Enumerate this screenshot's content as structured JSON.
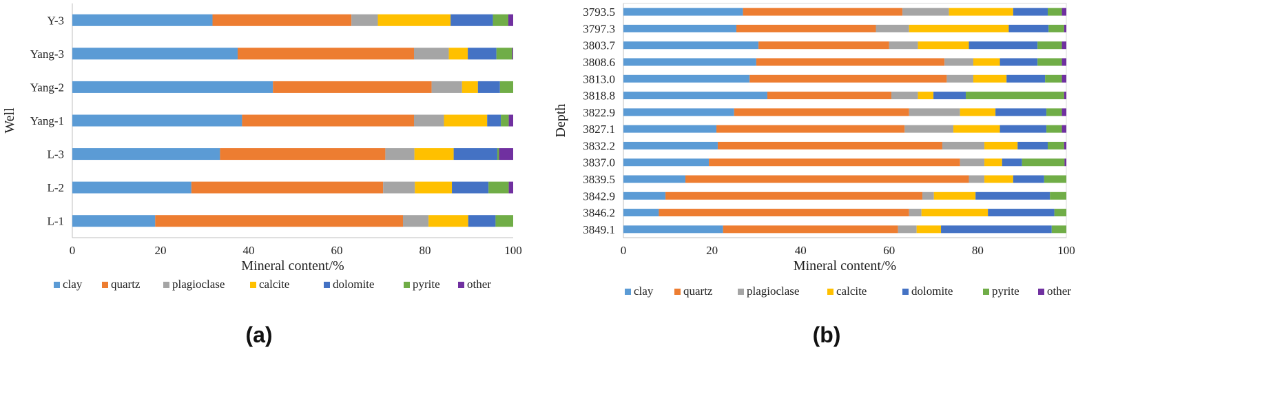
{
  "colors": {
    "clay": "#5b9bd5",
    "quartz": "#ed7d31",
    "plagioclase": "#a5a5a5",
    "calcite": "#ffc000",
    "dolomite": "#4472c4",
    "pyrite": "#70ad47",
    "other": "#7030a0"
  },
  "chart_data": [
    {
      "type": "bar",
      "orientation": "horizontal",
      "stacked": true,
      "panel_label": "(a)",
      "xlabel": "Mineral content/%",
      "ylabel": "Well",
      "xlim": [
        0,
        100
      ],
      "xticks": [
        "0",
        "20",
        "40",
        "60",
        "80",
        "100"
      ],
      "categories": [
        "Y-3",
        "Yang-3",
        "Yang-2",
        "Yang-1",
        "L-3",
        "L-2",
        "L-1"
      ],
      "series": [
        {
          "name": "clay",
          "values": [
            31.8,
            37.5,
            45.5,
            38.5,
            33.5,
            27.0,
            18.8
          ]
        },
        {
          "name": "quartz",
          "values": [
            31.5,
            40.0,
            36.0,
            39.0,
            37.5,
            43.5,
            56.2
          ]
        },
        {
          "name": "plagioclase",
          "values": [
            6.0,
            7.9,
            6.9,
            6.8,
            6.6,
            7.2,
            5.8
          ]
        },
        {
          "name": "calcite",
          "values": [
            16.5,
            4.3,
            3.6,
            9.8,
            8.9,
            8.4,
            9.0
          ]
        },
        {
          "name": "dolomite",
          "values": [
            9.6,
            6.5,
            5.0,
            3.1,
            9.9,
            8.3,
            6.2
          ]
        },
        {
          "name": "pyrite",
          "values": [
            3.5,
            3.6,
            3.0,
            1.8,
            0.4,
            4.6,
            4.0
          ]
        },
        {
          "name": "other",
          "values": [
            1.1,
            0.2,
            0.0,
            1.0,
            3.2,
            1.0,
            0.0
          ]
        }
      ],
      "legend": [
        "clay",
        "quartz",
        "plagioclase",
        "calcite",
        "dolomite",
        "pyrite",
        "other"
      ]
    },
    {
      "type": "bar",
      "orientation": "horizontal",
      "stacked": true,
      "panel_label": "(b)",
      "xlabel": "Mineral content/%",
      "ylabel": "Depth",
      "xlim": [
        0,
        100
      ],
      "xticks": [
        "0",
        "20",
        "40",
        "60",
        "80",
        "100"
      ],
      "categories": [
        "3793.5",
        "3797.3",
        "3803.7",
        "3808.6",
        "3813.0",
        "3818.8",
        "3822.9",
        "3827.1",
        "3832.2",
        "3837.0",
        "3839.5",
        "3842.9",
        "3846.2",
        "3849.1"
      ],
      "series": [
        {
          "name": "clay",
          "values": [
            27.0,
            25.5,
            30.5,
            30.0,
            28.5,
            32.5,
            25.0,
            21.0,
            21.3,
            19.3,
            14.0,
            9.5,
            8.0,
            22.5
          ]
        },
        {
          "name": "quartz",
          "values": [
            36.0,
            31.5,
            29.5,
            42.5,
            44.5,
            28.0,
            39.5,
            42.5,
            50.7,
            56.7,
            64.0,
            58.0,
            56.5,
            39.5
          ]
        },
        {
          "name": "plagioclase",
          "values": [
            10.5,
            7.5,
            6.5,
            6.5,
            6.0,
            6.0,
            11.5,
            11.0,
            9.5,
            5.5,
            3.5,
            2.6,
            2.8,
            4.2
          ]
        },
        {
          "name": "calcite",
          "values": [
            14.5,
            22.5,
            11.5,
            6.0,
            7.5,
            3.5,
            8.0,
            10.5,
            7.5,
            4.0,
            6.5,
            9.4,
            15.0,
            5.5
          ]
        },
        {
          "name": "dolomite",
          "values": [
            7.8,
            9.0,
            15.5,
            8.5,
            8.7,
            7.3,
            11.5,
            10.5,
            6.8,
            4.5,
            7.0,
            16.8,
            15.0,
            25.0
          ]
        },
        {
          "name": "pyrite",
          "values": [
            3.2,
            3.5,
            5.5,
            5.5,
            3.8,
            22.2,
            3.5,
            3.5,
            3.7,
            9.6,
            5.0,
            3.7,
            2.7,
            3.3
          ]
        },
        {
          "name": "other",
          "values": [
            1.0,
            0.5,
            1.0,
            1.0,
            1.0,
            0.5,
            1.0,
            1.0,
            0.5,
            0.4,
            0.0,
            0.0,
            0.0,
            0.0
          ]
        }
      ],
      "legend": [
        "clay",
        "quartz",
        "plagioclase",
        "calcite",
        "dolomite",
        "pyrite",
        "other"
      ]
    }
  ]
}
